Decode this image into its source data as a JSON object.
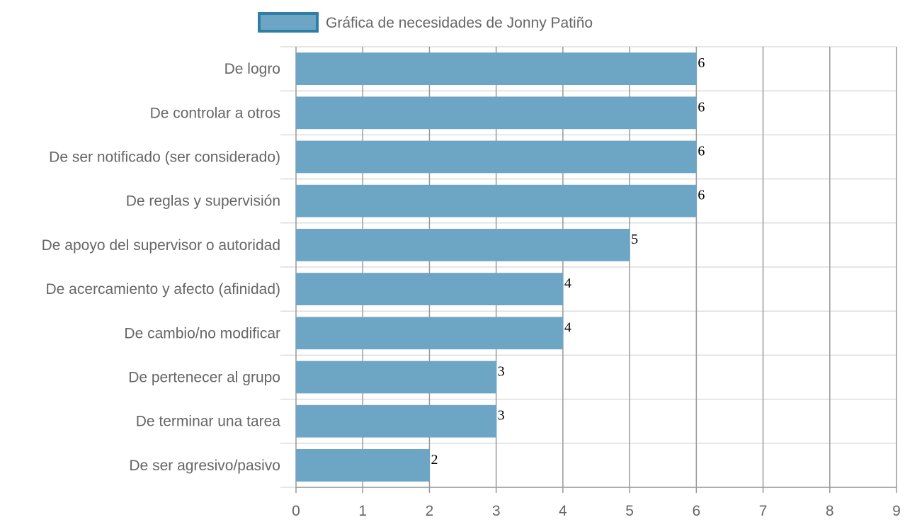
{
  "chart_data": {
    "type": "bar",
    "orientation": "horizontal",
    "categories": [
      "De logro",
      "De controlar a otros",
      "De ser notificado (ser considerado)",
      "De reglas y supervisión",
      "De apoyo del supervisor o autoridad",
      "De acercamiento y afecto (afinidad)",
      "De cambio/no modificar",
      "De pertenecer al grupo",
      "De terminar una tarea",
      "De ser agresivo/pasivo"
    ],
    "series": [
      {
        "name": "Gráfica de necesidades de Jonny Patiño",
        "values": [
          6,
          6,
          6,
          6,
          5,
          4,
          4,
          3,
          3,
          2
        ]
      }
    ],
    "xlim": [
      0,
      9
    ],
    "xticks": [
      "0",
      "1",
      "2",
      "3",
      "4",
      "5",
      "6",
      "7",
      "8",
      "9"
    ],
    "grid": true,
    "legend_position": "top",
    "colors": {
      "bar_fill": "#6ca6c4",
      "bar_border": "#2f7ea3",
      "grid": "#999999",
      "hgrid": "#dddddd"
    }
  }
}
